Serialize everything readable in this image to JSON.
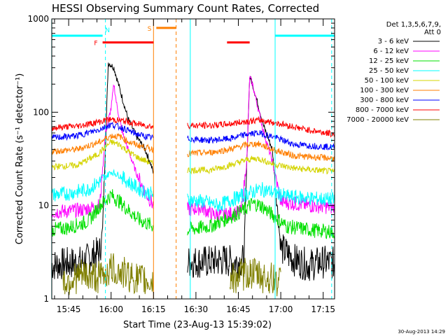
{
  "chart_data": {
    "type": "line",
    "title": "HESSI Observing Summary Count Rates, Corrected",
    "xlabel": "Start Time (23-Aug-13 15:39:02)",
    "ylabel": "Corrected Count Rate (s⁻¹ detector⁻¹)",
    "yscale": "log",
    "ylim": [
      1,
      1000
    ],
    "y_tick_labels": [
      "1",
      "10",
      "100",
      "1000"
    ],
    "xlim": [
      "15:39:02",
      "17:19:02"
    ],
    "x_tick_labels": [
      "15:45",
      "16:00",
      "16:15",
      "16:30",
      "16:45",
      "17:00",
      "17:15"
    ],
    "grid": false,
    "legend": {
      "placement": "right",
      "header": [
        "Det 1,3,5,6,7,9,",
        "Att 0"
      ],
      "entries": [
        {
          "label": "3 - 6 keV",
          "color": "#000000"
        },
        {
          "label": "6 - 12 keV",
          "color": "#ff00ff"
        },
        {
          "label": "12 - 25 keV",
          "color": "#00e000"
        },
        {
          "label": "25 - 50 keV",
          "color": "#00ffff"
        },
        {
          "label": "50 - 100 keV",
          "color": "#d4d400"
        },
        {
          "label": "100 - 300 keV",
          "color": "#ff7f00"
        },
        {
          "label": "300 - 800 keV",
          "color": "#0000ff"
        },
        {
          "label": "800 - 7000 keV",
          "color": "#ff0000"
        },
        {
          "label": "7000 - 20000 keV",
          "color": "#808000"
        }
      ]
    },
    "data_gaps": [
      [
        "16:15",
        "16:27"
      ]
    ],
    "series": [
      {
        "name": "3 - 6 keV",
        "color": "#000000",
        "segments": [
          {
            "t": [
              "15:39",
              "15:50",
              "15:56",
              "15:57",
              "15:59",
              "16:01",
              "16:03",
              "16:06",
              "16:09",
              "16:12",
              "16:14",
              "16:15"
            ],
            "y": [
              2.3,
              2.5,
              3.2,
              5.5,
              340,
              300,
              180,
              85,
              55,
              40,
              28,
              22
            ]
          },
          {
            "t": [
              "16:27",
              "16:35",
              "16:40",
              "16:43",
              "16:45",
              "16:47",
              "16:48",
              "16:49",
              "16:50",
              "16:52",
              "16:54",
              "16:57",
              "17:00",
              "17:05",
              "17:10",
              "17:15",
              "17:19"
            ],
            "y": [
              2.5,
              2.5,
              2.6,
              2.5,
              2.5,
              2.6,
              30,
              240,
              200,
              120,
              70,
              40,
              3.5,
              2.6,
              2.3,
              2.5,
              2.4
            ]
          }
        ]
      },
      {
        "name": "6 - 12 keV",
        "color": "#ff00ff",
        "segments": [
          {
            "t": [
              "15:39",
              "15:50",
              "15:56",
              "15:58",
              "16:00",
              "16:01",
              "16:02",
              "16:04",
              "16:06",
              "16:09",
              "16:12",
              "16:15"
            ],
            "y": [
              8.5,
              9,
              10,
              60,
              110,
              200,
              120,
              60,
              40,
              22,
              14,
              10
            ]
          },
          {
            "t": [
              "16:27",
              "16:32",
              "16:36",
              "16:40",
              "16:46",
              "16:48",
              "16:49",
              "16:50",
              "16:52",
              "16:54",
              "16:57",
              "17:00",
              "17:05",
              "17:10",
              "17:15",
              "17:19"
            ],
            "y": [
              9,
              9.5,
              8,
              8,
              8.5,
              30,
              240,
              200,
              110,
              60,
              30,
              11,
              10.5,
              10,
              9.8,
              9.5
            ]
          }
        ]
      },
      {
        "name": "12 - 25 keV",
        "color": "#00e000",
        "segments": [
          {
            "t": [
              "15:39",
              "15:45",
              "15:52",
              "15:56",
              "16:00",
              "16:03",
              "16:06",
              "16:10",
              "16:15"
            ],
            "y": [
              5.5,
              5.8,
              6.8,
              10,
              13,
              11,
              9,
              7,
              6
            ]
          },
          {
            "t": [
              "16:27",
              "16:35",
              "16:42",
              "16:47",
              "16:50",
              "16:53",
              "16:57",
              "17:02",
              "17:10",
              "17:19"
            ],
            "y": [
              5.5,
              6,
              7.5,
              9,
              10.5,
              10,
              8,
              6,
              5.5,
              5.2
            ]
          }
        ]
      },
      {
        "name": "25 - 50 keV",
        "color": "#00ffff",
        "segments": [
          {
            "t": [
              "15:39",
              "15:45",
              "15:52",
              "15:57",
              "16:00",
              "16:03",
              "16:06",
              "16:10",
              "16:15"
            ],
            "y": [
              13,
              13.5,
              15,
              19,
              23,
              21,
              18,
              15,
              13
            ]
          },
          {
            "t": [
              "16:27",
              "16:33",
              "16:38",
              "16:44",
              "16:50",
              "16:53",
              "16:57",
              "17:02",
              "17:10",
              "17:19"
            ],
            "y": [
              11.5,
              11,
              10,
              12,
              14,
              15,
              14,
              12.5,
              12,
              11.5
            ]
          }
        ]
      },
      {
        "name": "50 - 100 keV",
        "color": "#d4d400",
        "segments": [
          {
            "t": [
              "15:39",
              "15:48",
              "15:55",
              "16:00",
              "16:03",
              "16:06",
              "16:10",
              "16:15"
            ],
            "y": [
              26,
              27,
              35,
              48,
              45,
              38,
              32,
              28
            ]
          },
          {
            "t": [
              "16:27",
              "16:35",
              "16:42",
              "16:48",
              "16:52",
              "16:57",
              "17:05",
              "17:19"
            ],
            "y": [
              24,
              24,
              27,
              31,
              32,
              28,
              25,
              23
            ]
          }
        ]
      },
      {
        "name": "100 - 300 keV",
        "color": "#ff7f00",
        "segments": [
          {
            "t": [
              "15:39",
              "15:48",
              "15:56",
              "16:00",
              "16:03",
              "16:07",
              "16:12",
              "16:15"
            ],
            "y": [
              38,
              40,
              48,
              56,
              55,
              47,
              42,
              40
            ]
          },
          {
            "t": [
              "16:27",
              "16:35",
              "16:42",
              "16:48",
              "16:52",
              "16:57",
              "17:05",
              "17:19"
            ],
            "y": [
              36,
              37,
              40,
              45,
              46,
              40,
              34,
              32
            ]
          }
        ]
      },
      {
        "name": "300 - 800 keV",
        "color": "#0000ff",
        "segments": [
          {
            "t": [
              "15:39",
              "15:48",
              "15:55",
              "16:00",
              "16:04",
              "16:08",
              "16:12",
              "16:15"
            ],
            "y": [
              53,
              56,
              64,
              74,
              68,
              60,
              55,
              53
            ]
          },
          {
            "t": [
              "16:27",
              "16:35",
              "16:42",
              "16:48",
              "16:52",
              "16:57",
              "17:05",
              "17:19"
            ],
            "y": [
              52,
              50,
              52,
              58,
              60,
              55,
              45,
              42
            ]
          }
        ]
      },
      {
        "name": "800 - 7000 keV",
        "color": "#ff0000",
        "segments": [
          {
            "t": [
              "15:39",
              "15:48",
              "15:55",
              "16:00",
              "16:05",
              "16:10",
              "16:15"
            ],
            "y": [
              68,
              71,
              78,
              84,
              80,
              74,
              70
            ]
          },
          {
            "t": [
              "16:27",
              "16:35",
              "16:42",
              "16:48",
              "16:53",
              "17:00",
              "17:08",
              "17:19"
            ],
            "y": [
              72,
              72,
              75,
              80,
              82,
              75,
              66,
              58
            ]
          }
        ]
      },
      {
        "name": "7000 - 20000 keV",
        "color": "#808000",
        "segments": [
          {
            "t": [
              "15:43",
              "15:50",
              "15:56",
              "16:00",
              "16:04",
              "16:10",
              "16:15"
            ],
            "y": [
              1.5,
              1.8,
              1.7,
              2.1,
              1.9,
              1.6,
              1.5
            ]
          },
          {
            "t": [
              "16:42",
              "16:46",
              "16:50",
              "16:54",
              "16:58",
              "17:00"
            ],
            "y": [
              1.6,
              1.8,
              1.9,
              1.7,
              1.6,
              1.5
            ]
          }
        ]
      }
    ],
    "annotations": {
      "flags": [
        {
          "label": "N",
          "color": "#00ffff",
          "y": 660,
          "spans": [
            [
              "15:39",
              "15:57"
            ],
            [
              "16:58",
              "17:19"
            ]
          ]
        },
        {
          "label": "F",
          "color": "#ff0000",
          "y": 560,
          "spans": [
            [
              "15:57",
              "16:15"
            ],
            [
              "16:41",
              "16:49"
            ]
          ]
        },
        {
          "label": "S",
          "color": "#ff7f00",
          "y": 800,
          "spans": [
            [
              "16:16",
              "16:23"
            ]
          ]
        }
      ],
      "vertical_lines": [
        {
          "t": "15:39",
          "color": "#00ffff",
          "style": "solid"
        },
        {
          "t": "15:58",
          "color": "#00ffff",
          "style": "dashed"
        },
        {
          "t": "16:15",
          "color": "#ff7f00",
          "style": "solid"
        },
        {
          "t": "16:23",
          "color": "#ff7f00",
          "style": "dashed"
        },
        {
          "t": "16:28",
          "color": "#00ffff",
          "style": "solid"
        },
        {
          "t": "16:58",
          "color": "#00ffff",
          "style": "solid"
        },
        {
          "t": "17:18",
          "color": "#00ffff",
          "style": "dashed"
        }
      ]
    },
    "footer_timestamp": "30-Aug-2013 14:29"
  }
}
